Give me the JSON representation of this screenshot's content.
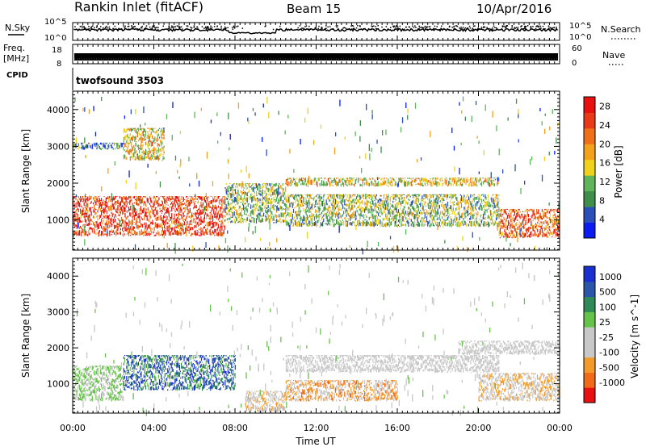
{
  "header": {
    "station": "Rankin Inlet (fitACF)",
    "beam": "Beam 15",
    "date": "10/Apr/2016"
  },
  "strip_labels": {
    "nsky": "N.Sky",
    "nsearch": "N.Search",
    "freq": "Freq.",
    "freq_unit": "[MHz]",
    "nave": "Nave",
    "cpid": "CPID",
    "cpid_value": "twofsound 3503"
  },
  "strip_ticks": {
    "noise_left_top": "10^5",
    "noise_left_bottom": "10^0",
    "noise_right_top": "10^5",
    "noise_right_bottom": "10^0",
    "freq_left_top": "18",
    "freq_left_bottom": "8",
    "nave_right_top": "60",
    "nave_right_bottom": "0"
  },
  "colors": {
    "power_scale": [
      "#0b1cf0",
      "#2a4fb8",
      "#3f8f4a",
      "#5fb65a",
      "#f0d21c",
      "#f4a21c",
      "#f07018",
      "#e83a18",
      "#e81010"
    ],
    "velocity_scale": [
      "#e81010",
      "#f06a18",
      "#f49a2a",
      "#c8c8c8",
      "#c8c8c8",
      "#66c34a",
      "#2f8a58",
      "#2a55a8",
      "#1a2fd0"
    ]
  },
  "chart_data": [
    {
      "type": "heatmap",
      "name": "power",
      "xlabel": "",
      "ylabel": "Slant Range [km]",
      "x_ticks": [
        "00:00",
        "04:00",
        "08:00",
        "12:00",
        "16:00",
        "20:00",
        "00:00"
      ],
      "y_ticks": [
        "1000",
        "2000",
        "3000",
        "4000"
      ],
      "xlim_hours": [
        0,
        24
      ],
      "ylim_km": [
        180,
        4500
      ],
      "colorbar_label": "Power [dB]",
      "colorbar_ticks": [
        "4",
        "8",
        "12",
        "16",
        "20",
        "24",
        "28"
      ],
      "colorbar_range": [
        0,
        30
      ],
      "features": [
        {
          "t": [
            0.0,
            7.5
          ],
          "r": [
            550,
            1650
          ],
          "level": 26
        },
        {
          "t": [
            7.5,
            10.5
          ],
          "r": [
            900,
            2000
          ],
          "level": 12
        },
        {
          "t": [
            10.5,
            21.0
          ],
          "r": [
            800,
            1700
          ],
          "level": 12
        },
        {
          "t": [
            10.5,
            21.0
          ],
          "r": [
            1900,
            2150
          ],
          "level": 16
        },
        {
          "t": [
            21.0,
            24.0
          ],
          "r": [
            500,
            1300
          ],
          "level": 24
        },
        {
          "t": [
            0.0,
            2.5
          ],
          "r": [
            2900,
            3100
          ],
          "level": 8
        },
        {
          "t": [
            2.5,
            4.5
          ],
          "r": [
            2600,
            3500
          ],
          "level": 16
        }
      ]
    },
    {
      "type": "heatmap",
      "name": "velocity",
      "xlabel": "Time UT",
      "ylabel": "Slant Range [km]",
      "x_ticks": [
        "00:00",
        "04:00",
        "08:00",
        "12:00",
        "16:00",
        "20:00",
        "00:00"
      ],
      "y_ticks": [
        "1000",
        "2000",
        "3000",
        "4000"
      ],
      "xlim_hours": [
        0,
        24
      ],
      "ylim_km": [
        180,
        4500
      ],
      "colorbar_label": "Velocity [m s^-1]",
      "colorbar_ticks": [
        "1000",
        "500",
        "100",
        "25",
        "-25",
        "-100",
        "-500",
        "-1000"
      ],
      "colorbar_range": [
        -1000,
        1000
      ],
      "features": [
        {
          "t": [
            0.0,
            2.5
          ],
          "r": [
            500,
            1500
          ],
          "value": 150
        },
        {
          "t": [
            2.5,
            8.0
          ],
          "r": [
            800,
            1800
          ],
          "value": 600
        },
        {
          "t": [
            8.5,
            10.5
          ],
          "r": [
            200,
            800
          ],
          "value": -300
        },
        {
          "t": [
            10.5,
            16.0
          ],
          "r": [
            500,
            1100
          ],
          "value": -400
        },
        {
          "t": [
            10.5,
            21.0
          ],
          "r": [
            1300,
            1800
          ],
          "value": 0
        },
        {
          "t": [
            19.0,
            24.0
          ],
          "r": [
            1800,
            2200
          ],
          "value": 0
        },
        {
          "t": [
            20.0,
            24.0
          ],
          "r": [
            500,
            1300
          ],
          "value": -300
        }
      ]
    }
  ]
}
